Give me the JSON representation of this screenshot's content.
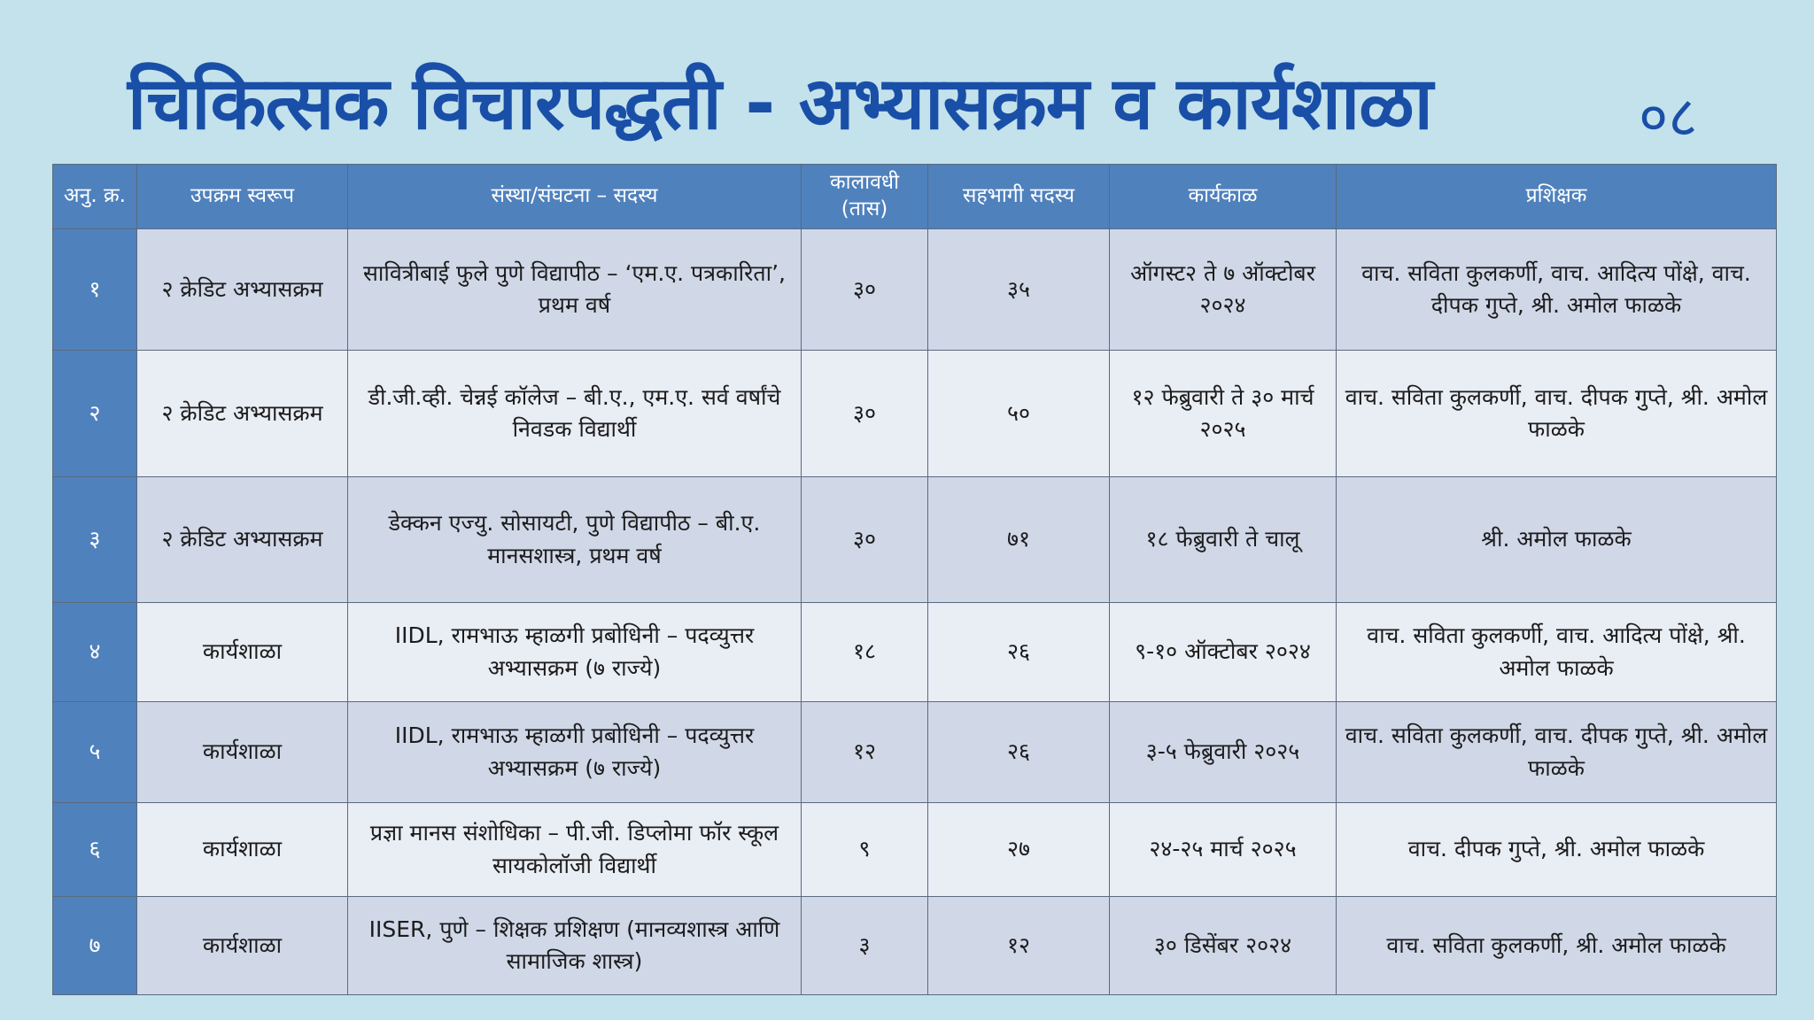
{
  "title": "चिकित्सक विचारपद्धती - अभ्यासक्रम व कार्यशाळा",
  "page_number": "०८",
  "colors": {
    "title": "#1a4fa8",
    "header": "#4f81bd",
    "background": "#c3e2ec",
    "row_odd": "#d0d8e8",
    "row_even": "#e9edf4"
  },
  "table": {
    "headers": [
      "अनु. क्र.",
      "उपक्रम स्वरूप",
      "संस्था/संघटना – सदस्य",
      "कालावधी (तास)",
      "सहभागी सदस्य",
      "कार्यकाळ",
      "प्रशिक्षक"
    ],
    "rows": [
      [
        "१",
        "२ क्रेडिट अभ्यासक्रम",
        "सावित्रीबाई फुले पुणे विद्यापीठ – ‘एम.ए. पत्रकारिता’, प्रथम वर्ष",
        "३०",
        "३५",
        "ऑगस्ट२ ते ७ ऑक्टोबर २०२४",
        "वाच. सविता कुलकर्णी, वाच. आदित्य पोंक्षे, वाच. दीपक गुप्ते, श्री. अमोल फाळके"
      ],
      [
        "२",
        "२ क्रेडिट अभ्यासक्रम",
        "डी.जी.व्ही. चेन्नई कॉलेज – बी.ए., एम.ए. सर्व वर्षांचे निवडक विद्यार्थी",
        "३०",
        "५०",
        "१२ फेब्रुवारी ते ३० मार्च २०२५",
        "वाच. सविता कुलकर्णी, वाच. दीपक गुप्ते, श्री. अमोल फाळके"
      ],
      [
        "३",
        "२ क्रेडिट अभ्यासक्रम",
        "डेक्कन एज्यु. सोसायटी, पुणे विद्यापीठ – बी.ए. मानसशास्त्र, प्रथम वर्ष",
        "३०",
        "७१",
        "१८ फेब्रुवारी ते चालू",
        "श्री. अमोल फाळके"
      ],
      [
        "४",
        "कार्यशाळा",
        "IIDL, रामभाऊ म्हाळगी प्रबोधिनी – पदव्युत्तर अभ्यासक्रम (७ राज्ये)",
        "१८",
        "२६",
        "९-१० ऑक्टोबर २०२४",
        "वाच. सविता कुलकर्णी, वाच. आदित्य पोंक्षे, श्री. अमोल फाळके"
      ],
      [
        "५",
        "कार्यशाळा",
        "IIDL, रामभाऊ म्हाळगी प्रबोधिनी – पदव्युत्तर अभ्यासक्रम (७ राज्ये)",
        "१२",
        "२६",
        "३-५ फेब्रुवारी २०२५",
        "वाच. सविता कुलकर्णी, वाच. दीपक गुप्ते, श्री. अमोल फाळके"
      ],
      [
        "६",
        "कार्यशाळा",
        "प्रज्ञा मानस संशोधिका – पी.जी. डिप्लोमा फॉर स्कूल सायकोलॉजी विद्यार्थी",
        "९",
        "२७",
        "२४-२५ मार्च २०२५",
        "वाच. दीपक गुप्ते, श्री. अमोल फाळके"
      ],
      [
        "७",
        "कार्यशाळा",
        "IISER, पुणे – शिक्षक प्रशिक्षण (मानव्यशास्त्र आणि सामाजिक शास्त्र)",
        "३",
        "१२",
        "३० डिसेंबर २०२४",
        "वाच. सविता कुलकर्णी, श्री. अमोल फाळके"
      ]
    ]
  }
}
